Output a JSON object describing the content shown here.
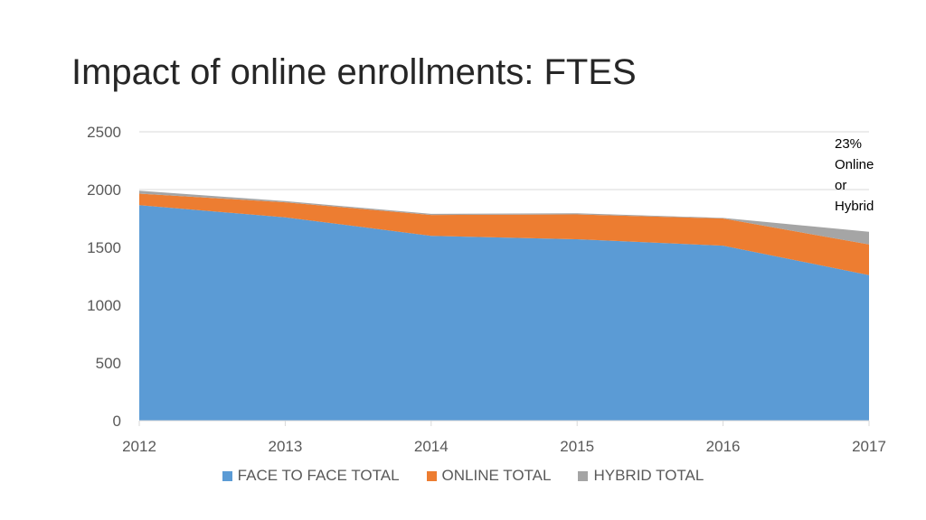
{
  "slide": {
    "title": "Impact of online enrollments:  FTES"
  },
  "chart_data": {
    "type": "area",
    "stacked": true,
    "x": [
      "2012",
      "2013",
      "2014",
      "2015",
      "2016",
      "2017"
    ],
    "series": [
      {
        "name": "FACE TO FACE TOTAL",
        "color": "#5B9BD5",
        "values": [
          1865,
          1760,
          1600,
          1570,
          1515,
          1260
        ]
      },
      {
        "name": "ONLINE TOTAL",
        "color": "#ED7D31",
        "values": [
          100,
          130,
          180,
          215,
          235,
          265
        ]
      },
      {
        "name": "HYBRID TOTAL",
        "color": "#A5A5A5",
        "values": [
          25,
          10,
          10,
          10,
          5,
          110
        ]
      }
    ],
    "ylim": [
      0,
      2500
    ],
    "yticks": [
      "0",
      "500",
      "1000",
      "1500",
      "2000",
      "2500"
    ],
    "grid": true,
    "legend_position": "bottom",
    "annotation": {
      "lines": [
        "23%",
        "Online",
        "or",
        "Hybrid"
      ]
    }
  }
}
